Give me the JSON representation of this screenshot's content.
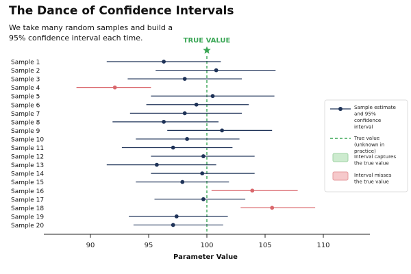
{
  "header": {
    "title": "The Dance of Confidence Intervals",
    "subtitle": "We take many random samples and build a 95% confidence interval each time."
  },
  "colors": {
    "captures": "#1f3358",
    "misses": "#d9666b",
    "true_line": "#3aa655",
    "axis": "#222222",
    "legend_capture_fill": "#cdebcf",
    "legend_capture_stroke": "#9fd3a4",
    "legend_miss_fill": "#f6c9cb",
    "legend_miss_stroke": "#e59a9e"
  },
  "chart_data": {
    "type": "scatter",
    "xlabel": "Parameter Value",
    "xlim": [
      86,
      114
    ],
    "xticks": [
      90,
      95,
      100,
      105,
      110
    ],
    "true_value": 100,
    "true_value_label": "TRUE VALUE",
    "samples": [
      {
        "label": "Sample 1",
        "estimate": 96.3,
        "lower": 91.4,
        "upper": 101.2,
        "captures": true
      },
      {
        "label": "Sample 2",
        "estimate": 100.8,
        "lower": 95.6,
        "upper": 105.9,
        "captures": true
      },
      {
        "label": "Sample 3",
        "estimate": 98.1,
        "lower": 93.2,
        "upper": 103.0,
        "captures": true
      },
      {
        "label": "Sample 4",
        "estimate": 92.1,
        "lower": 88.8,
        "upper": 95.2,
        "captures": false
      },
      {
        "label": "Sample 5",
        "estimate": 100.5,
        "lower": 95.2,
        "upper": 105.8,
        "captures": true
      },
      {
        "label": "Sample 6",
        "estimate": 99.1,
        "lower": 94.8,
        "upper": 103.6,
        "captures": true
      },
      {
        "label": "Sample 7",
        "estimate": 98.1,
        "lower": 93.4,
        "upper": 103.0,
        "captures": true
      },
      {
        "label": "Sample 8",
        "estimate": 96.3,
        "lower": 91.9,
        "upper": 101.0,
        "captures": true
      },
      {
        "label": "Sample 9",
        "estimate": 101.3,
        "lower": 96.6,
        "upper": 105.6,
        "captures": true
      },
      {
        "label": "Sample 10",
        "estimate": 98.3,
        "lower": 93.9,
        "upper": 102.8,
        "captures": true
      },
      {
        "label": "Sample 11",
        "estimate": 97.1,
        "lower": 92.7,
        "upper": 102.2,
        "captures": true
      },
      {
        "label": "Sample 12",
        "estimate": 99.7,
        "lower": 95.2,
        "upper": 104.1,
        "captures": true
      },
      {
        "label": "Sample 13",
        "estimate": 95.7,
        "lower": 91.4,
        "upper": 100.8,
        "captures": true
      },
      {
        "label": "Sample 14",
        "estimate": 99.6,
        "lower": 95.2,
        "upper": 104.1,
        "captures": true
      },
      {
        "label": "Sample 15",
        "estimate": 97.9,
        "lower": 93.9,
        "upper": 101.9,
        "captures": true
      },
      {
        "label": "Sample 16",
        "estimate": 103.9,
        "lower": 100.4,
        "upper": 107.8,
        "captures": false
      },
      {
        "label": "Sample 17",
        "estimate": 99.7,
        "lower": 95.5,
        "upper": 103.3,
        "captures": true
      },
      {
        "label": "Sample 18",
        "estimate": 105.6,
        "lower": 102.9,
        "upper": 109.3,
        "captures": false
      },
      {
        "label": "Sample 19",
        "estimate": 97.4,
        "lower": 93.3,
        "upper": 101.8,
        "captures": true
      },
      {
        "label": "Sample 20",
        "estimate": 97.1,
        "lower": 93.7,
        "upper": 101.4,
        "captures": true
      }
    ],
    "legend": {
      "placement": "right",
      "items": [
        {
          "key": "estimate",
          "label": "Sample estimate and 95% confidence interval"
        },
        {
          "key": "true_value",
          "label": "True value (unknown in practice)"
        },
        {
          "key": "captures",
          "label": "Interval captures the true value"
        },
        {
          "key": "misses",
          "label": "Interval misses the true value"
        }
      ]
    }
  }
}
